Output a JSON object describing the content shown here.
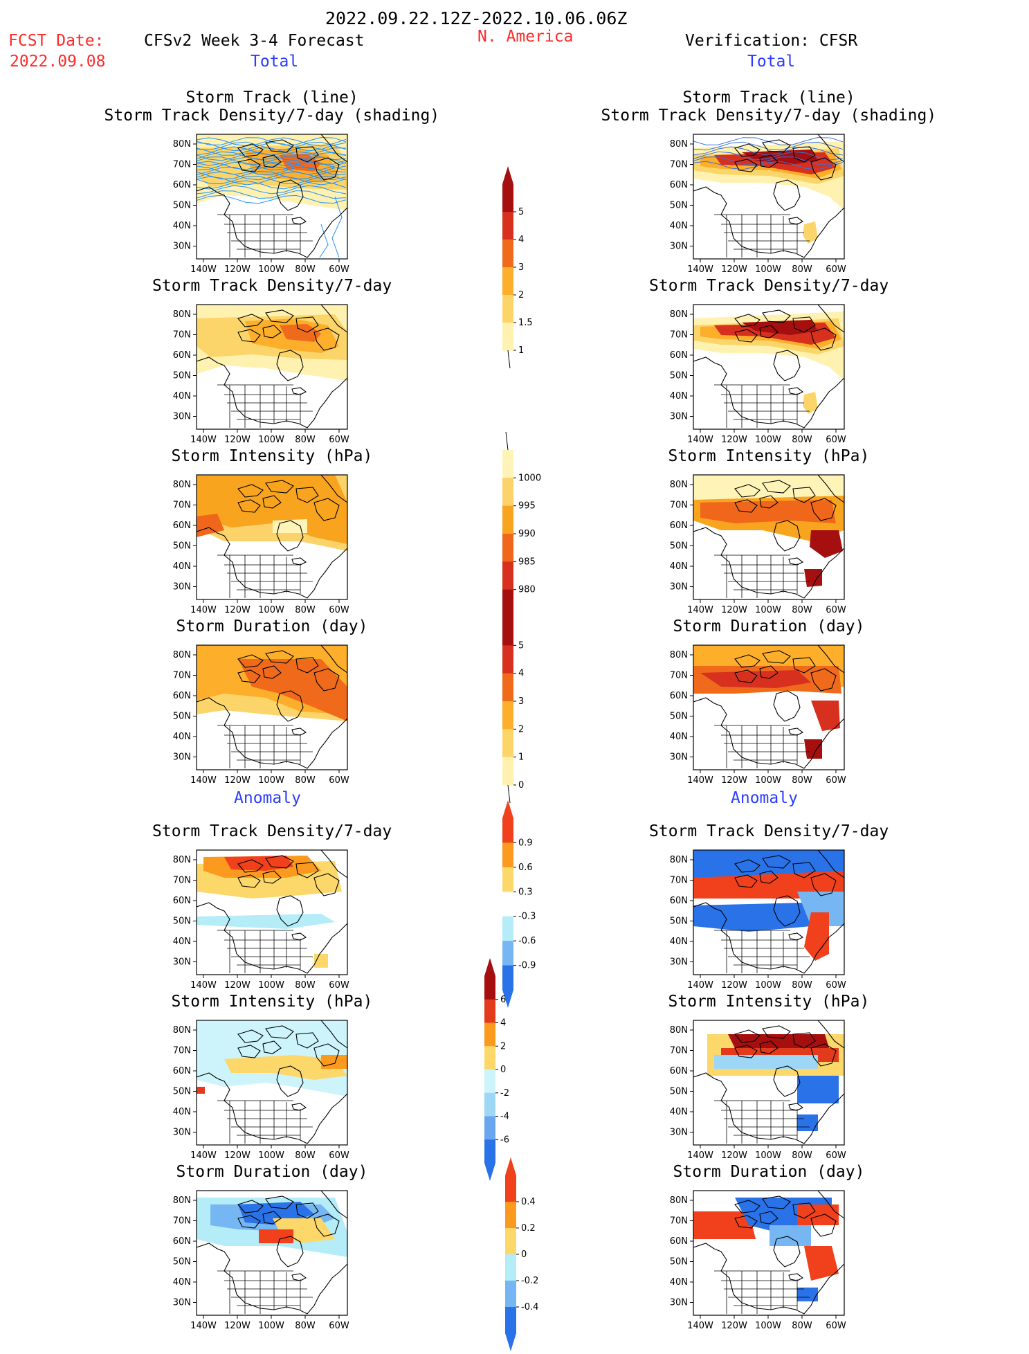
{
  "header": {
    "period": "2022.09.22.12Z-2022.10.06.06Z",
    "fcst_label": "FCST Date:",
    "fcst_date": "2022.09.08",
    "model": "CFSv2 Week 3-4 Forecast",
    "region": "N. America",
    "verification": "Verification: CFSR",
    "left_total": "Total",
    "right_total": "Total",
    "left_anomaly": "Anomaly",
    "right_anomaly": "Anomaly"
  },
  "axes": {
    "lat_ticks": [
      "80N",
      "70N",
      "60N",
      "50N",
      "40N",
      "30N"
    ],
    "lon_ticks": [
      "140W",
      "120W",
      "100W",
      "80W",
      "60W"
    ]
  },
  "panels": {
    "forecast": [
      {
        "title1": "Storm Track (line)",
        "title2": "Storm Track Density/7-day (shading)",
        "field": "density_total",
        "tracks": true
      },
      {
        "title1": "Storm Track Density/7-day",
        "field": "density_total"
      },
      {
        "title1": "Storm Intensity (hPa)",
        "field": "intensity_total"
      },
      {
        "title1": "Storm Duration (day)",
        "field": "duration_total"
      },
      {
        "title1": "Storm Track Density/7-day",
        "field": "density_anom"
      },
      {
        "title1": "Storm Intensity (hPa)",
        "field": "intensity_anom"
      },
      {
        "title1": "Storm Duration (day)",
        "field": "duration_anom"
      }
    ],
    "verification": [
      {
        "title1": "Storm Track (line)",
        "title2": "Storm Track Density/7-day (shading)",
        "field": "density_total",
        "tracks": true
      },
      {
        "title1": "Storm Track Density/7-day",
        "field": "density_total"
      },
      {
        "title1": "Storm Intensity (hPa)",
        "field": "intensity_total"
      },
      {
        "title1": "Storm Duration (day)",
        "field": "duration_total"
      },
      {
        "title1": "Storm Track Density/7-day",
        "field": "density_anom"
      },
      {
        "title1": "Storm Intensity (hPa)",
        "field": "intensity_anom"
      },
      {
        "title1": "Storm Duration (day)",
        "field": "duration_anom"
      }
    ]
  },
  "colorbars": [
    {
      "id": "density_total",
      "labels": [
        "5",
        "4",
        "3",
        "2",
        "1.5",
        "1"
      ],
      "colors": [
        "#a50f0f",
        "#d7301f",
        "#f06a1c",
        "#fdae2b",
        "#fcd56a",
        "#fff2b0"
      ],
      "arrow_top": true
    },
    {
      "id": "intensity_total",
      "labels": [
        "1000",
        "995",
        "990",
        "985",
        "980"
      ],
      "colors": [
        "#fff4b8",
        "#fcd26a",
        "#f9a41e",
        "#f0661a",
        "#d7301f",
        "#a50f0f"
      ],
      "arrow_bottom": true
    },
    {
      "id": "duration_total",
      "labels": [
        "5",
        "4",
        "3",
        "2",
        "1",
        "0"
      ],
      "colors": [
        "#a50f0f",
        "#d7301f",
        "#f06a1c",
        "#fdae2b",
        "#fcd56a",
        "#fff2b0"
      ],
      "arrow_top": true
    },
    {
      "id": "density_anom",
      "labels": [
        "0.9",
        "0.6",
        "0.3",
        "-0.3",
        "-0.6",
        "-0.9"
      ],
      "colors": [
        "#f0401c",
        "#fb9a1e",
        "#fcd86a",
        "#ffffff",
        "#b4ecf8",
        "#76b6f2",
        "#2a72e8"
      ],
      "arrow_top": true,
      "arrow_bottom": true
    },
    {
      "id": "intensity_anom",
      "labels": [
        "6",
        "4",
        "2",
        "0",
        "-2",
        "-4",
        "-6"
      ],
      "colors": [
        "#a50f0f",
        "#e33a1c",
        "#fb9a1e",
        "#fcd86a",
        "#cdf4fb",
        "#9ed6f5",
        "#6aa6ef",
        "#2a72e8"
      ],
      "arrow_top": true,
      "arrow_bottom": true
    },
    {
      "id": "duration_anom",
      "labels": [
        "0.4",
        "0.2",
        "0",
        "-0.2",
        "-0.4"
      ],
      "colors": [
        "#f0401c",
        "#fb9a1e",
        "#fcd86a",
        "#b4ecf8",
        "#76b6f2",
        "#2a72e8"
      ],
      "arrow_top": true,
      "arrow_bottom": true
    }
  ]
}
